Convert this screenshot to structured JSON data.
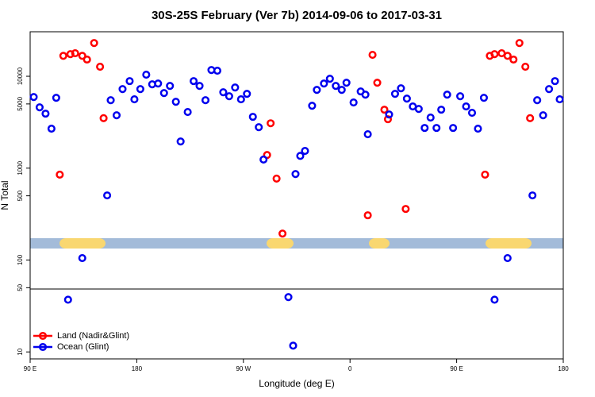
{
  "chart_data": {
    "type": "scatter",
    "title": "30S-25S February (Ver 7b)   2014-09-06 to 2017-03-31",
    "x_label": "Longitude (deg E)",
    "y_label": "N Total",
    "xlim": [
      90,
      540
    ],
    "xticks": [
      {
        "value": 90,
        "label": "90 E"
      },
      180,
      {
        "value": 270,
        "label": "90 W"
      },
      {
        "value": 360,
        "label": "0"
      },
      {
        "value": 450,
        "label": "90 E"
      },
      {
        "value": 540,
        "label": "180"
      }
    ],
    "ylim": [
      8.4,
      30500
    ],
    "yticks": [
      10,
      50,
      100,
      500,
      1000,
      5000,
      10000
    ],
    "log_y": true,
    "legend": "lower left",
    "series": [
      {
        "name": "Land (Nadir&Glint)",
        "color": "#ff0000",
        "x": [
          115,
          118,
          124,
          128,
          134,
          138,
          144,
          149,
          152,
          290,
          293,
          298,
          303,
          375,
          379,
          383,
          389,
          392,
          407,
          474,
          478,
          482,
          488,
          493,
          498,
          503,
          508,
          512
        ],
        "values": [
          850,
          16700,
          17400,
          17800,
          16700,
          15200,
          23000,
          12700,
          3500,
          1390,
          3080,
          770,
          194,
          307,
          17100,
          8510,
          4330,
          3410,
          360,
          850,
          16700,
          17400,
          17800,
          16700,
          15200,
          23000,
          12700,
          3500
        ]
      },
      {
        "name": "Ocean (Glint)",
        "color": "#0000ee",
        "x": [
          93,
          98,
          103,
          108,
          112,
          122,
          134,
          155,
          158,
          163,
          168,
          174,
          178,
          183,
          188,
          193,
          198,
          203,
          208,
          213,
          217,
          223,
          228,
          233,
          238,
          243,
          248,
          253,
          258,
          263,
          268,
          273,
          278,
          283,
          287,
          308,
          312,
          314,
          318,
          322,
          328,
          332,
          338,
          343,
          348,
          353,
          357,
          363,
          369,
          373,
          375,
          393,
          398,
          403,
          408,
          413,
          418,
          423,
          428,
          433,
          437,
          442,
          447,
          453,
          458,
          463,
          468,
          473,
          482,
          493,
          514,
          518,
          523,
          528,
          533,
          537
        ],
        "values": [
          5950,
          4590,
          3920,
          2690,
          5830,
          37,
          105,
          505,
          5490,
          3760,
          7260,
          8860,
          5610,
          7260,
          10400,
          8180,
          8340,
          6570,
          7860,
          5280,
          1950,
          4080,
          8860,
          7860,
          5490,
          11700,
          11500,
          6700,
          6070,
          7550,
          5610,
          6440,
          3620,
          2790,
          1240,
          39.5,
          11.7,
          863,
          1360,
          1540,
          4780,
          7110,
          8340,
          9400,
          7860,
          7110,
          8510,
          5180,
          6840,
          6310,
          2340,
          3840,
          6440,
          7400,
          5710,
          4690,
          4410,
          2740,
          3550,
          2740,
          4330,
          6310,
          2740,
          6070,
          4690,
          4000,
          2690,
          5830,
          37,
          105,
          505,
          5490,
          3760,
          7260,
          8860,
          5610
        ]
      }
    ]
  }
}
